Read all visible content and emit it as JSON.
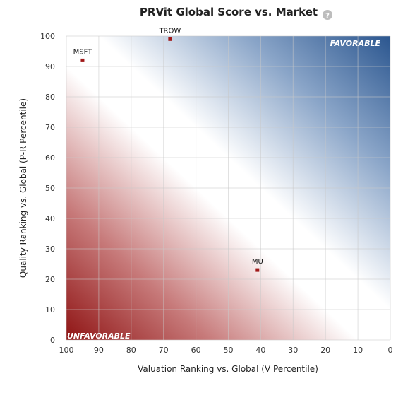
{
  "chart_data": {
    "type": "scatter",
    "title": "PRVit Global Score vs. Market",
    "xlabel": "Valuation Ranking vs. Global (V Percentile)",
    "ylabel": "Quality Ranking vs. Global (P-R Percentile)",
    "xlim": [
      100,
      0
    ],
    "ylim": [
      0,
      100
    ],
    "x_reversed": true,
    "x_ticks": [
      "100",
      "90",
      "80",
      "70",
      "60",
      "50",
      "40",
      "30",
      "20",
      "10",
      "0"
    ],
    "y_ticks": [
      "0",
      "10",
      "20",
      "30",
      "40",
      "50",
      "60",
      "70",
      "80",
      "90",
      "100"
    ],
    "grid": true,
    "background": "diagonal gradient red (bottom-left) to white to blue (top-right)",
    "points": [
      {
        "label": "MSFT",
        "x": 95,
        "y": 92
      },
      {
        "label": "TROW",
        "x": 68,
        "y": 99
      },
      {
        "label": "MU",
        "x": 41,
        "y": 23
      }
    ],
    "corner_labels": {
      "favorable": "FAVORABLE",
      "unfavorable": "UNFAVORABLE"
    },
    "colors": {
      "unfavorable": "#9b1c1c",
      "neutral": "#ffffff",
      "favorable": "#2f5b95",
      "marker": "#a01818"
    }
  },
  "help": {
    "icon": "question-mark-icon",
    "glyph": "?"
  }
}
